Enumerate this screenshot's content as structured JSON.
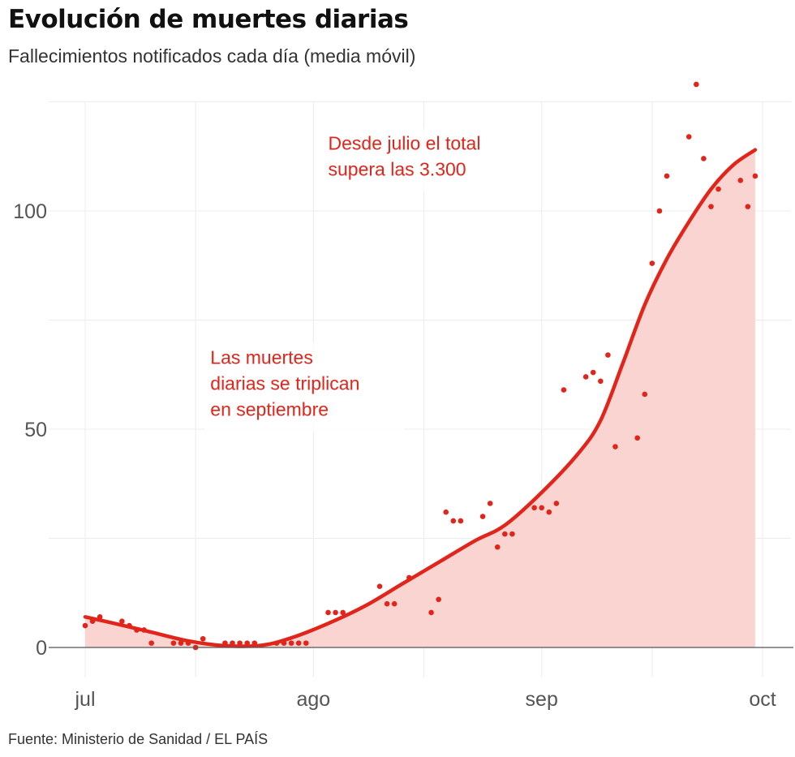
{
  "title": "Evolución de muertes diarias",
  "subtitle": "Fallecimientos notificados cada día (media móvil)",
  "source": "Fuente: Ministerio de Sanidad / EL PAÍS",
  "colors": {
    "line": "#e1251b",
    "fill": "#fad4d1",
    "grid": "#ececec",
    "zero_line": "#555555",
    "text": "#333333"
  },
  "chart_data": {
    "type": "line",
    "title": "Evolución de muertes diarias",
    "subtitle": "Fallecimientos notificados cada día (media móvil)",
    "xlabel": "",
    "ylabel": "",
    "x_unit": "day",
    "x_range": [
      "2020-07-01",
      "2020-10-01"
    ],
    "ylim": [
      -7,
      125
    ],
    "y_ticks": [
      0,
      50,
      100
    ],
    "x_ticks": [
      {
        "date": "2020-07-01",
        "label": "jul"
      },
      {
        "date": "2020-08-01",
        "label": "ago"
      },
      {
        "date": "2020-09-01",
        "label": "sep"
      },
      {
        "date": "2020-10-01",
        "label": "oct"
      }
    ],
    "grid": true,
    "legend": "none",
    "series": [
      {
        "kind": "points",
        "points": [
          {
            "x": "2020-07-01",
            "y": 5
          },
          {
            "x": "2020-07-02",
            "y": 6
          },
          {
            "x": "2020-07-03",
            "y": 7
          },
          {
            "x": "2020-07-06",
            "y": 6
          },
          {
            "x": "2020-07-07",
            "y": 5
          },
          {
            "x": "2020-07-08",
            "y": 4
          },
          {
            "x": "2020-07-09",
            "y": 4
          },
          {
            "x": "2020-07-10",
            "y": 1
          },
          {
            "x": "2020-07-13",
            "y": 1
          },
          {
            "x": "2020-07-14",
            "y": 1
          },
          {
            "x": "2020-07-15",
            "y": 1
          },
          {
            "x": "2020-07-16",
            "y": 0
          },
          {
            "x": "2020-07-17",
            "y": 2
          },
          {
            "x": "2020-07-20",
            "y": 1
          },
          {
            "x": "2020-07-21",
            "y": 1
          },
          {
            "x": "2020-07-22",
            "y": 1
          },
          {
            "x": "2020-07-23",
            "y": 1
          },
          {
            "x": "2020-07-24",
            "y": 1
          },
          {
            "x": "2020-07-27",
            "y": 1
          },
          {
            "x": "2020-07-28",
            "y": 1
          },
          {
            "x": "2020-07-29",
            "y": 1
          },
          {
            "x": "2020-07-30",
            "y": 1
          },
          {
            "x": "2020-07-31",
            "y": 1
          },
          {
            "x": "2020-08-03",
            "y": 8
          },
          {
            "x": "2020-08-04",
            "y": 8
          },
          {
            "x": "2020-08-05",
            "y": 8
          },
          {
            "x": "2020-08-10",
            "y": 14
          },
          {
            "x": "2020-08-11",
            "y": 10
          },
          {
            "x": "2020-08-12",
            "y": 10
          },
          {
            "x": "2020-08-14",
            "y": 16
          },
          {
            "x": "2020-08-17",
            "y": 8
          },
          {
            "x": "2020-08-18",
            "y": 11
          },
          {
            "x": "2020-08-19",
            "y": 31
          },
          {
            "x": "2020-08-20",
            "y": 29
          },
          {
            "x": "2020-08-21",
            "y": 29
          },
          {
            "x": "2020-08-24",
            "y": 30
          },
          {
            "x": "2020-08-25",
            "y": 33
          },
          {
            "x": "2020-08-26",
            "y": 23
          },
          {
            "x": "2020-08-27",
            "y": 26
          },
          {
            "x": "2020-08-28",
            "y": 26
          },
          {
            "x": "2020-08-31",
            "y": 32
          },
          {
            "x": "2020-09-01",
            "y": 32
          },
          {
            "x": "2020-09-02",
            "y": 31
          },
          {
            "x": "2020-09-03",
            "y": 33
          },
          {
            "x": "2020-09-04",
            "y": 59
          },
          {
            "x": "2020-09-07",
            "y": 62
          },
          {
            "x": "2020-09-08",
            "y": 63
          },
          {
            "x": "2020-09-09",
            "y": 61
          },
          {
            "x": "2020-09-10",
            "y": 67
          },
          {
            "x": "2020-09-11",
            "y": 46
          },
          {
            "x": "2020-09-14",
            "y": 48
          },
          {
            "x": "2020-09-15",
            "y": 58
          },
          {
            "x": "2020-09-16",
            "y": 88
          },
          {
            "x": "2020-09-17",
            "y": 100
          },
          {
            "x": "2020-09-18",
            "y": 108
          },
          {
            "x": "2020-09-21",
            "y": 117
          },
          {
            "x": "2020-09-22",
            "y": 129
          },
          {
            "x": "2020-09-23",
            "y": 112
          },
          {
            "x": "2020-09-24",
            "y": 101
          },
          {
            "x": "2020-09-25",
            "y": 105
          },
          {
            "x": "2020-09-28",
            "y": 107
          },
          {
            "x": "2020-09-29",
            "y": 101
          },
          {
            "x": "2020-09-30",
            "y": 108
          }
        ]
      },
      {
        "kind": "smooth_line_area",
        "points": [
          {
            "x": "2020-07-01",
            "y": 7
          },
          {
            "x": "2020-07-05",
            "y": 5.5
          },
          {
            "x": "2020-07-10",
            "y": 3.5
          },
          {
            "x": "2020-07-15",
            "y": 1.5
          },
          {
            "x": "2020-07-20",
            "y": 0.4
          },
          {
            "x": "2020-07-25",
            "y": 0.5
          },
          {
            "x": "2020-07-29",
            "y": 2.2
          },
          {
            "x": "2020-08-03",
            "y": 5.5
          },
          {
            "x": "2020-08-08",
            "y": 9.5
          },
          {
            "x": "2020-08-13",
            "y": 14.5
          },
          {
            "x": "2020-08-18",
            "y": 19.5
          },
          {
            "x": "2020-08-23",
            "y": 24.5
          },
          {
            "x": "2020-08-27",
            "y": 28
          },
          {
            "x": "2020-09-01",
            "y": 35.5
          },
          {
            "x": "2020-09-06",
            "y": 44.5
          },
          {
            "x": "2020-09-09",
            "y": 52
          },
          {
            "x": "2020-09-12",
            "y": 65
          },
          {
            "x": "2020-09-15",
            "y": 78.5
          },
          {
            "x": "2020-09-18",
            "y": 89
          },
          {
            "x": "2020-09-21",
            "y": 97.5
          },
          {
            "x": "2020-09-24",
            "y": 105
          },
          {
            "x": "2020-09-27",
            "y": 110.5
          },
          {
            "x": "2020-09-30",
            "y": 114
          }
        ]
      }
    ],
    "annotations": [
      {
        "lines": [
          "Desde julio el total",
          "supera las 3.300"
        ],
        "x": "2020-08-03",
        "y": 114
      },
      {
        "lines": [
          "Las muertes",
          "diarias se triplican",
          "en septiembre"
        ],
        "x": "2020-07-18",
        "y": 65
      }
    ]
  }
}
